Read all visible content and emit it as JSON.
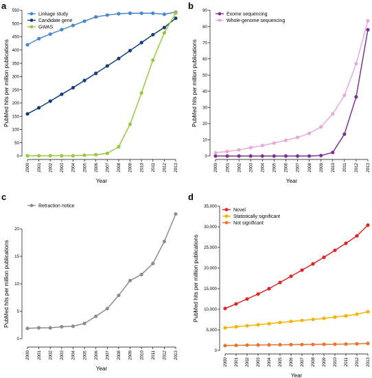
{
  "chart_data": [
    {
      "panel": "a",
      "type": "line",
      "xlabel": "Year",
      "ylabel": "PubMed hits per million publications",
      "x": [
        "2000",
        "2001",
        "2002",
        "2003",
        "2004",
        "2005",
        "2006",
        "2007",
        "2008",
        "2009",
        "2010",
        "2011",
        "2012",
        "2013"
      ],
      "ylim": [
        0,
        550
      ],
      "yticks": [
        0,
        50,
        100,
        150,
        200,
        250,
        300,
        350,
        400,
        450,
        500,
        550
      ],
      "legend_position": "top-left",
      "series": [
        {
          "name": "Linkage study",
          "color": "#4a86d0",
          "values": [
            420,
            443,
            460,
            477,
            493,
            509,
            525,
            532,
            537,
            539,
            539,
            539,
            535,
            543
          ]
        },
        {
          "name": "Candidate gene",
          "color": "#123f7a",
          "values": [
            159,
            182,
            207,
            233,
            258,
            285,
            312,
            340,
            368,
            398,
            428,
            458,
            485,
            520
          ]
        },
        {
          "name": "GWAS",
          "color": "#97c93d",
          "values": [
            1,
            1,
            1,
            1,
            1,
            3,
            5,
            10,
            35,
            120,
            238,
            362,
            465,
            540
          ]
        }
      ]
    },
    {
      "panel": "b",
      "type": "line",
      "xlabel": "Year",
      "ylabel": "PubMed hits per million publications",
      "x": [
        "2000",
        "2001",
        "2002",
        "2003",
        "2004",
        "2005",
        "2006",
        "2007",
        "2008",
        "2009",
        "2010",
        "2011",
        "2012",
        "2013"
      ],
      "ylim": [
        0,
        90
      ],
      "yticks": [
        0,
        10,
        20,
        30,
        40,
        50,
        60,
        70,
        80,
        90
      ],
      "legend_position": "top-left",
      "series": [
        {
          "name": "Exome sequencing",
          "color": "#7b3294",
          "values": [
            0,
            0,
            0,
            0,
            0,
            0,
            0,
            0,
            0,
            0.3,
            2.2,
            13.5,
            36.5,
            78
          ]
        },
        {
          "name": "Whole-genome sequencing",
          "color": "#e7a9d9",
          "values": [
            2,
            2.8,
            3.8,
            5.2,
            6.5,
            8,
            9.7,
            11.5,
            14,
            18,
            26,
            37.5,
            57,
            83.5
          ]
        }
      ]
    },
    {
      "panel": "c",
      "type": "line",
      "xlabel": "Year",
      "ylabel": "PubMed hits per million publications",
      "x": [
        "2000",
        "2001",
        "2002",
        "2003",
        "2004",
        "2005",
        "2006",
        "2007",
        "2008",
        "2009",
        "2010",
        "2011",
        "2012",
        "2013"
      ],
      "ylim": [
        0,
        25
      ],
      "yticks": [
        0,
        5,
        10,
        15,
        20
      ],
      "legend_position": "top-left",
      "series": [
        {
          "name": "Retraction notice",
          "color": "#8c8c8c",
          "values": [
            1.9,
            2.0,
            2.0,
            2.2,
            2.3,
            2.8,
            4.1,
            5.5,
            7.9,
            10.6,
            11.7,
            13.7,
            17.7,
            22.7
          ]
        }
      ]
    },
    {
      "panel": "d",
      "type": "line",
      "xlabel": "Year",
      "ylabel": "PubMed hits per million publications",
      "x": [
        "2000",
        "2001",
        "2002",
        "2003",
        "2004",
        "2005",
        "2006",
        "2007",
        "2008",
        "2009",
        "2010",
        "2011",
        "2012",
        "2013"
      ],
      "ylim": [
        0,
        35000
      ],
      "yticks": [
        0,
        5000,
        10000,
        15000,
        20000,
        25000,
        30000,
        35000
      ],
      "ytick_labels": [
        "0",
        "5,000",
        "10,000",
        "15,000",
        "20,000",
        "25,000",
        "30,000",
        "35,000"
      ],
      "legend_position": "top-left",
      "series": [
        {
          "name": "Novel",
          "color": "#e02424",
          "values": [
            10200,
            11300,
            12500,
            13700,
            15000,
            16500,
            18000,
            19500,
            21000,
            22600,
            24300,
            26000,
            27800,
            30400
          ]
        },
        {
          "name": "Statistically significant",
          "color": "#f2b400",
          "values": [
            5500,
            5750,
            6000,
            6250,
            6500,
            6800,
            7050,
            7300,
            7550,
            7800,
            8100,
            8400,
            8800,
            9400
          ]
        },
        {
          "name": "Not significant",
          "color": "#e8732a",
          "values": [
            1200,
            1250,
            1300,
            1330,
            1370,
            1400,
            1420,
            1450,
            1470,
            1500,
            1530,
            1560,
            1620,
            1720
          ]
        }
      ]
    }
  ]
}
